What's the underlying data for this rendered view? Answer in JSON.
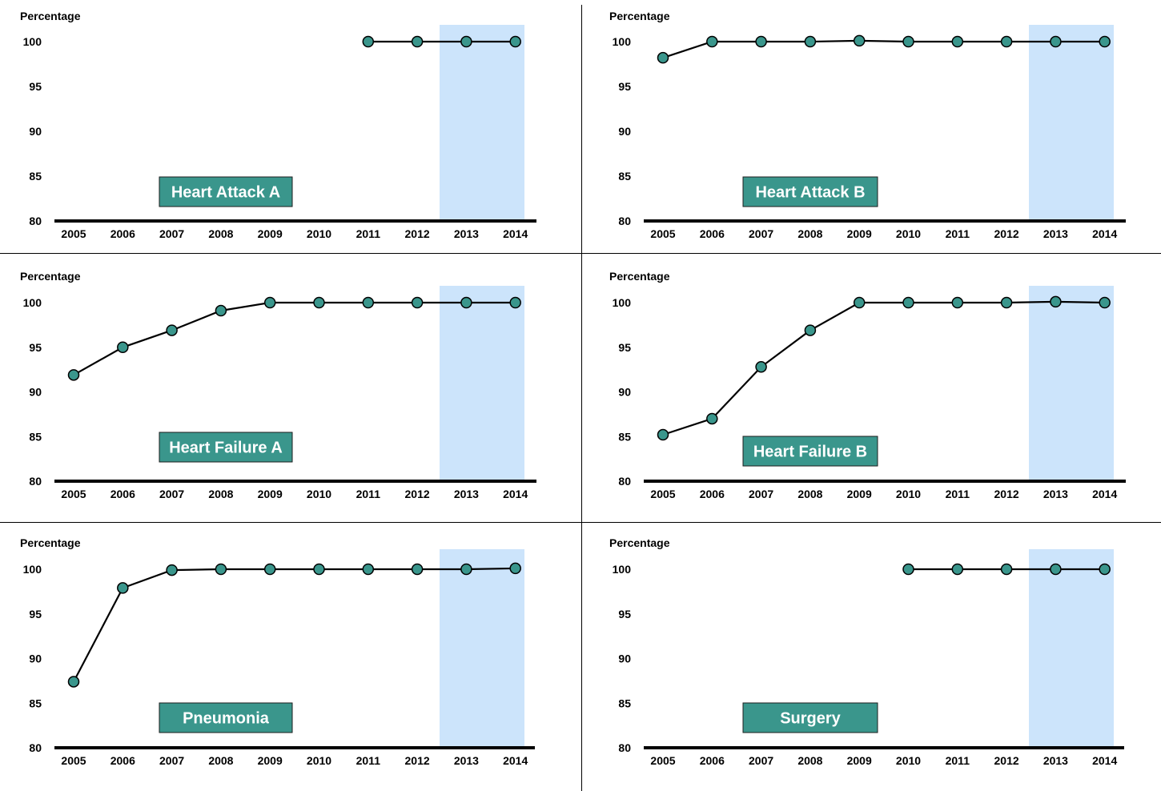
{
  "colors": {
    "marker": "#3a968c",
    "line": "#000000",
    "highlight": "#cce4fb",
    "badge": "#3a968c",
    "badge_text": "#ffffff"
  },
  "chart_data": [
    {
      "type": "line",
      "title": "Heart Attack A",
      "ylabel": "Percentage",
      "x": [
        "2005",
        "2006",
        "2007",
        "2008",
        "2009",
        "2010",
        "2011",
        "2012",
        "2013",
        "2014"
      ],
      "y": [
        null,
        null,
        null,
        null,
        null,
        null,
        100,
        100,
        100,
        100
      ],
      "yticks": [
        "80",
        "85",
        "90",
        "95",
        "100"
      ],
      "ylim": [
        80,
        100
      ],
      "highlight": [
        "2013",
        "2014"
      ],
      "grid": false
    },
    {
      "type": "line",
      "title": "Heart Attack B",
      "ylabel": "Percentage",
      "x": [
        "2005",
        "2006",
        "2007",
        "2008",
        "2009",
        "2010",
        "2011",
        "2012",
        "2013",
        "2014"
      ],
      "y": [
        98.2,
        100,
        100,
        100,
        100.1,
        100,
        100,
        100,
        100,
        100
      ],
      "yticks": [
        "80",
        "85",
        "90",
        "95",
        "100"
      ],
      "ylim": [
        80,
        100
      ],
      "highlight": [
        "2013",
        "2014"
      ],
      "grid": false
    },
    {
      "type": "line",
      "title": "Heart Failure A",
      "ylabel": "Percentage",
      "x": [
        "2005",
        "2006",
        "2007",
        "2008",
        "2009",
        "2010",
        "2011",
        "2012",
        "2013",
        "2014"
      ],
      "y": [
        91.9,
        95,
        96.9,
        99.1,
        100,
        100,
        100,
        100,
        100,
        100
      ],
      "yticks": [
        "80",
        "85",
        "90",
        "95",
        "100"
      ],
      "ylim": [
        80,
        100
      ],
      "highlight": [
        "2013",
        "2014"
      ],
      "grid": false
    },
    {
      "type": "line",
      "title": "Heart Failure B",
      "ylabel": "Percentage",
      "x": [
        "2005",
        "2006",
        "2007",
        "2008",
        "2009",
        "2010",
        "2011",
        "2012",
        "2013",
        "2014"
      ],
      "y": [
        85.2,
        87,
        92.8,
        96.9,
        100,
        100,
        100,
        100,
        100.1,
        100
      ],
      "yticks": [
        "80",
        "85",
        "90",
        "95",
        "100"
      ],
      "ylim": [
        80,
        100
      ],
      "highlight": [
        "2013",
        "2014"
      ],
      "grid": false
    },
    {
      "type": "line",
      "title": "Pneumonia",
      "ylabel": "Percentage",
      "x": [
        "2005",
        "2006",
        "2007",
        "2008",
        "2009",
        "2010",
        "2011",
        "2012",
        "2013",
        "2014"
      ],
      "y": [
        87.4,
        97.9,
        99.9,
        100,
        100,
        100,
        100,
        100,
        100,
        100.1
      ],
      "yticks": [
        "80",
        "85",
        "90",
        "95",
        "100"
      ],
      "ylim": [
        80,
        100
      ],
      "highlight": [
        "2013",
        "2014"
      ],
      "grid": false
    },
    {
      "type": "line",
      "title": "Surgery",
      "ylabel": "Percentage",
      "x": [
        "2005",
        "2006",
        "2007",
        "2008",
        "2009",
        "2010",
        "2011",
        "2012",
        "2013",
        "2014"
      ],
      "y": [
        null,
        null,
        null,
        null,
        null,
        100,
        100,
        100,
        100,
        100
      ],
      "yticks": [
        "80",
        "85",
        "90",
        "95",
        "100"
      ],
      "ylim": [
        80,
        100
      ],
      "highlight": [
        "2013",
        "2014"
      ],
      "grid": false
    }
  ]
}
